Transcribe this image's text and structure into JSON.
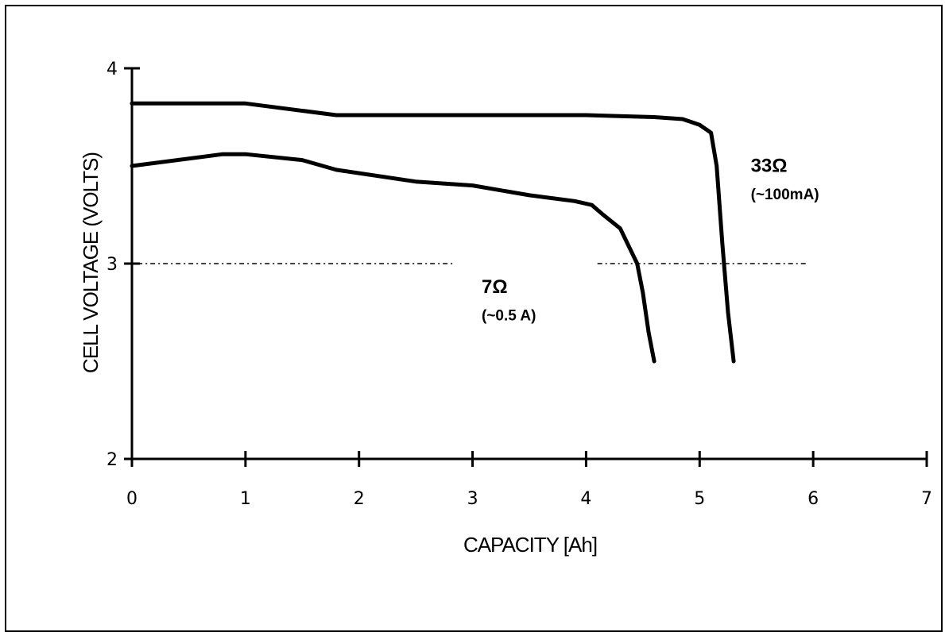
{
  "chart_data": {
    "type": "line",
    "title": "",
    "xlabel": "CAPACITY [Ah]",
    "ylabel": "CELL VOLTAGE (VOLTS)",
    "xlim": [
      0,
      7
    ],
    "ylim": [
      2,
      4
    ],
    "xticks": [
      "0",
      "1",
      "2",
      "3",
      "4",
      "5",
      "6",
      "7"
    ],
    "yticks": [
      "2",
      "3",
      "4"
    ],
    "grid": false,
    "reference_line": {
      "y": 3,
      "style": "dash-dot"
    },
    "series": [
      {
        "label": "33Ω",
        "sublabel": "(~100mA)",
        "x": [
          0,
          1,
          1.8,
          3,
          4,
          4.6,
          4.85,
          5.0,
          5.1,
          5.15,
          5.2,
          5.25,
          5.3
        ],
        "y": [
          3.82,
          3.82,
          3.76,
          3.76,
          3.76,
          3.75,
          3.74,
          3.71,
          3.67,
          3.5,
          3.1,
          2.75,
          2.5
        ]
      },
      {
        "label": "7Ω",
        "sublabel": "(~0.5 A)",
        "x": [
          0,
          0.8,
          1.0,
          1.5,
          1.8,
          2.5,
          3.0,
          3.5,
          3.9,
          4.05,
          4.15,
          4.3,
          4.45,
          4.5,
          4.55,
          4.6
        ],
        "y": [
          3.5,
          3.56,
          3.56,
          3.53,
          3.48,
          3.42,
          3.4,
          3.35,
          3.32,
          3.3,
          3.25,
          3.18,
          3.0,
          2.85,
          2.65,
          2.5
        ]
      }
    ]
  }
}
